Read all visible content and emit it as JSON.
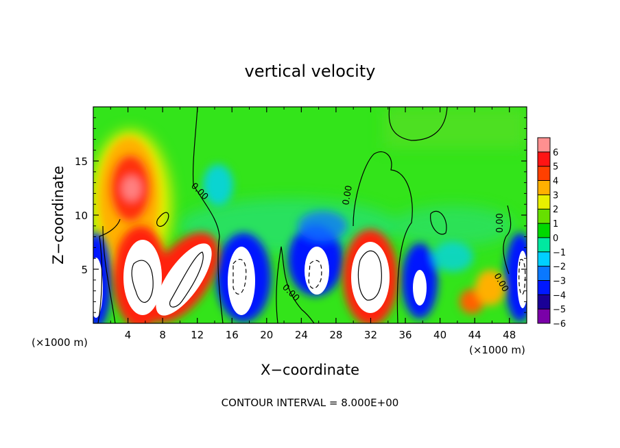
{
  "chart_data": {
    "type": "heatmap",
    "title": "vertical velocity",
    "xlabel": "X−coordinate",
    "ylabel": "Z−coordinate",
    "x_unit_left": "(×1000 m)",
    "x_unit_right": "(×1000 m)",
    "footer": "CONTOUR INTERVAL = 8.000E+00",
    "xlim": [
      0,
      50
    ],
    "ylim": [
      0,
      20
    ],
    "xticks": [
      4,
      8,
      12,
      16,
      20,
      24,
      28,
      32,
      36,
      40,
      44,
      48
    ],
    "xtick_labels": [
      "4",
      "8",
      "12",
      "16",
      "20",
      "24",
      "28",
      "32",
      "36",
      "40",
      "44",
      "48"
    ],
    "yticks": [
      5,
      10,
      15
    ],
    "ytick_labels": [
      "5",
      "10",
      "15"
    ],
    "contour_labels": [
      "0.00",
      "0.00",
      "0.00",
      "0.00",
      "0.00",
      "0.00"
    ],
    "colorbar": {
      "levels": [
        -6,
        -5,
        -4,
        -3,
        -2,
        -1,
        0,
        1,
        2,
        3,
        4,
        5,
        6
      ],
      "labels": [
        "−6",
        "−5",
        "−4",
        "−3",
        "−2",
        "−1",
        "0",
        "1",
        "2",
        "3",
        "4",
        "5",
        "6"
      ],
      "colors": [
        "#7a00a8",
        "#1a0096",
        "#0018ff",
        "#0a78ff",
        "#00d0ff",
        "#00e8a0",
        "#00d800",
        "#66e000",
        "#e8f000",
        "#ffb000",
        "#ff4000",
        "#ff1414",
        "#ff9090"
      ],
      "out_of_range_color": "#ffffff"
    },
    "features": [
      {
        "kind": "updraft",
        "x": 5.5,
        "z": 4.5,
        "w": 8
      },
      {
        "kind": "updraft",
        "x": 10.5,
        "z": 4.5,
        "w": 8
      },
      {
        "kind": "updraft",
        "x": 5,
        "z": 12.5,
        "w": 5
      },
      {
        "kind": "updraft",
        "x": 31.5,
        "z": 4.5,
        "w": 8
      },
      {
        "kind": "updraft",
        "x": 44,
        "z": 2,
        "w": 3
      },
      {
        "kind": "updraft",
        "x": 46,
        "z": 3,
        "w": 2
      },
      {
        "kind": "downdraft",
        "x": 0.5,
        "z": 3.5,
        "w": -8
      },
      {
        "kind": "downdraft",
        "x": 17.5,
        "z": 4.5,
        "w": -8
      },
      {
        "kind": "downdraft",
        "x": 25.5,
        "z": 5,
        "w": -8
      },
      {
        "kind": "downdraft",
        "x": 38,
        "z": 3.5,
        "w": -6
      },
      {
        "kind": "downdraft",
        "x": 49.5,
        "z": 4.5,
        "w": -8
      },
      {
        "kind": "downdraft",
        "x": 15,
        "z": 12,
        "w": -2
      }
    ]
  }
}
